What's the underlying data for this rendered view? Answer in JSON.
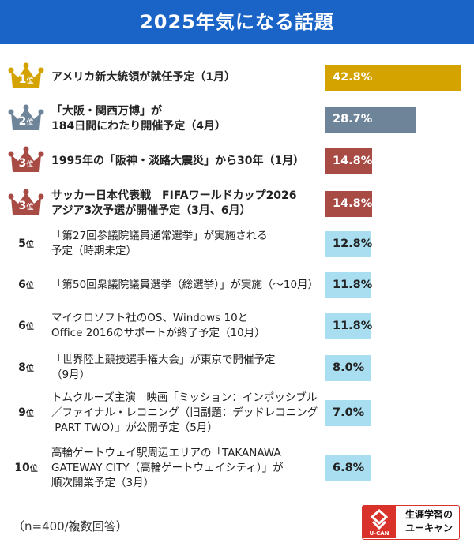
{
  "header": {
    "title": "2025年気になる話題"
  },
  "chart_data": {
    "type": "bar",
    "orientation": "horizontal",
    "title": "2025年気になる話題",
    "unit": "%",
    "xlim": [
      0,
      42.8
    ],
    "items": [
      {
        "rank": "1",
        "rank_suffix": "位",
        "crown": "gold",
        "label_lines": [
          "アメリカ新大統領が就任予定（1月）"
        ],
        "value": 42.8,
        "display": "42.8%",
        "bold": true
      },
      {
        "rank": "2",
        "rank_suffix": "位",
        "crown": "silver",
        "label_lines": [
          "「大阪・関西万博」が",
          "184日間にわたり開催予定（4月）"
        ],
        "value": 28.7,
        "display": "28.7%",
        "bold": true
      },
      {
        "rank": "3",
        "rank_suffix": "位",
        "crown": "bronze",
        "label_lines": [
          "1995年の「阪神・淡路大震災」から30年（1月）"
        ],
        "value": 14.8,
        "display": "14.8%",
        "bold": true
      },
      {
        "rank": "3",
        "rank_suffix": "位",
        "crown": "bronze",
        "label_lines": [
          "サッカー日本代表戦　FIFAワールドカップ2026",
          "アジア3次予選が開催予定（3月、6月）"
        ],
        "value": 14.8,
        "display": "14.8%",
        "bold": true
      },
      {
        "rank": "5",
        "rank_suffix": "位",
        "crown": "none",
        "label_lines": [
          "「第27回参議院議員通常選挙」が実施される",
          "予定（時期未定）"
        ],
        "value": 12.8,
        "display": "12.8%",
        "bold": false
      },
      {
        "rank": "6",
        "rank_suffix": "位",
        "crown": "none",
        "label_lines": [
          "「第50回衆議院議員選挙（総選挙）」が実施（〜10月）"
        ],
        "value": 11.8,
        "display": "11.8%",
        "bold": false
      },
      {
        "rank": "6",
        "rank_suffix": "位",
        "crown": "none",
        "label_lines": [
          "マイクロソフト社のOS、Windows 10と",
          "Office 2016のサポートが終了予定（10月）"
        ],
        "value": 11.8,
        "display": "11.8%",
        "bold": false
      },
      {
        "rank": "8",
        "rank_suffix": "位",
        "crown": "none",
        "label_lines": [
          "「世界陸上競技選手権大会」が東京で開催予定",
          "（9月）"
        ],
        "value": 8.0,
        "display": "8.0%",
        "bold": false
      },
      {
        "rank": "9",
        "rank_suffix": "位",
        "crown": "none",
        "label_lines": [
          "トムクルーズ主演　映画「ミッション：インポッシブル",
          "／ファイナル・レコニング（旧副題：デッドレコニング",
          " PART TWO）」が公開予定（5月）"
        ],
        "value": 7.0,
        "display": "7.0%",
        "bold": false
      },
      {
        "rank": "10",
        "rank_suffix": "位",
        "crown": "none",
        "label_lines": [
          "高輪ゲートウェイ駅周辺エリアの「TAKANAWA",
          "GATEWAY CITY（高輪ゲートウェイシティ）」が",
          "順次開業予定（3月）"
        ],
        "value": 6.8,
        "display": "6.8%",
        "bold": false
      }
    ]
  },
  "colors": {
    "header": "#1a64c8",
    "gold": "#d4a300",
    "silver": "#6e8499",
    "bronze": "#a84b45",
    "light": "#a8def0"
  },
  "footer": {
    "note": "（n=400/複数回答）"
  },
  "logo": {
    "line1": "生涯学習の",
    "line2": "ユーキャン",
    "mark_text": "U-CAN"
  }
}
